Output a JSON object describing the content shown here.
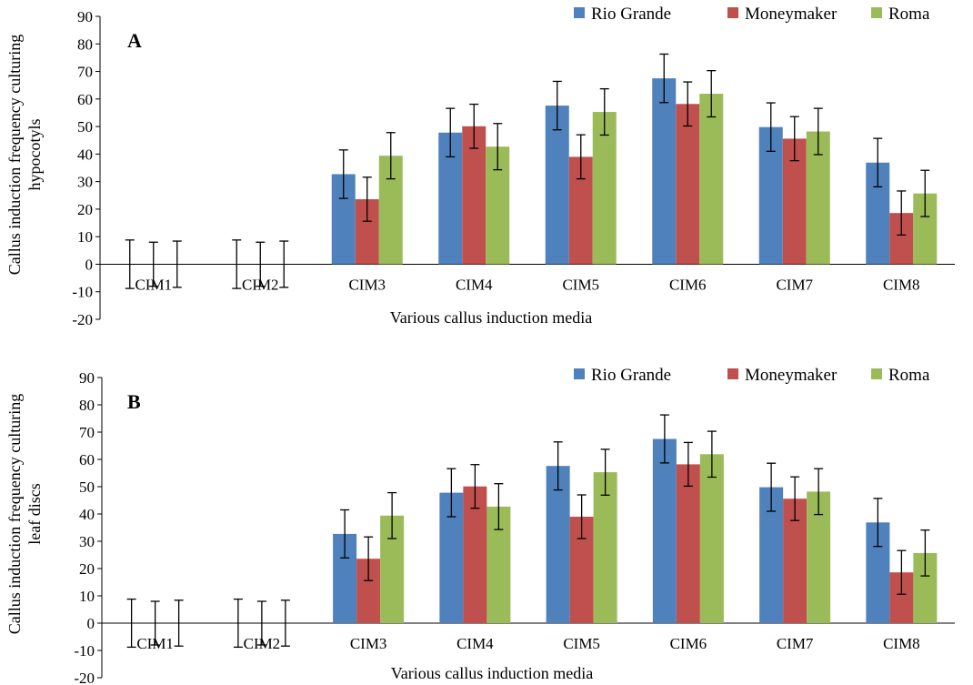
{
  "chart_data": [
    {
      "type": "bar",
      "panel": "A",
      "categories": [
        "CIM1",
        "CIM2",
        "CIM3",
        "CIM4",
        "CIM5",
        "CIM6",
        "CIM7",
        "CIM8"
      ],
      "series": [
        {
          "name": "Rio Grande",
          "color": "#4F81BD",
          "values": [
            0,
            0,
            32.7,
            47.8,
            57.6,
            67.5,
            49.8,
            36.9
          ],
          "errors": [
            8.8,
            8.8,
            8.8,
            8.8,
            8.8,
            8.8,
            8.8,
            8.8
          ]
        },
        {
          "name": "Moneymaker",
          "color": "#C0504D",
          "values": [
            0,
            0,
            23.6,
            50.1,
            39.0,
            58.2,
            45.6,
            18.6
          ],
          "errors": [
            8.0,
            8.0,
            8.0,
            8.0,
            8.0,
            8.0,
            8.0,
            8.0
          ]
        },
        {
          "name": "Roma",
          "color": "#9BBB59",
          "values": [
            0,
            0,
            39.4,
            42.7,
            55.3,
            61.9,
            48.2,
            25.7
          ],
          "errors": [
            8.4,
            8.4,
            8.4,
            8.4,
            8.4,
            8.4,
            8.4,
            8.4
          ]
        }
      ],
      "ylim": [
        -20,
        90
      ],
      "yticks": [
        "-20",
        "-10",
        "0",
        "10",
        "20",
        "30",
        "40",
        "50",
        "60",
        "70",
        "80",
        "90"
      ],
      "ylabel_lines": [
        "Callus induction frequency culturing",
        "hypocotyls"
      ],
      "xlabel": "Various callus induction media",
      "legend_position": "top-right",
      "grid": false
    },
    {
      "type": "bar",
      "panel": "B",
      "categories": [
        "CIM1",
        "CIM2",
        "CIM3",
        "CIM4",
        "CIM5",
        "CIM6",
        "CIM7",
        "CIM8"
      ],
      "series": [
        {
          "name": "Rio Grande",
          "color": "#4F81BD",
          "values": [
            0,
            0,
            32.7,
            47.8,
            57.6,
            67.5,
            49.8,
            36.9
          ],
          "errors": [
            8.8,
            8.8,
            8.8,
            8.8,
            8.8,
            8.8,
            8.8,
            8.8
          ]
        },
        {
          "name": "Moneymaker",
          "color": "#C0504D",
          "values": [
            0,
            0,
            23.6,
            50.1,
            39.0,
            58.2,
            45.6,
            18.6
          ],
          "errors": [
            8.0,
            8.0,
            8.0,
            8.0,
            8.0,
            8.0,
            8.0,
            8.0
          ]
        },
        {
          "name": "Roma",
          "color": "#9BBB59",
          "values": [
            0,
            0,
            39.4,
            42.7,
            55.3,
            61.9,
            48.2,
            25.7
          ],
          "errors": [
            8.4,
            8.4,
            8.4,
            8.4,
            8.4,
            8.4,
            8.4,
            8.4
          ]
        }
      ],
      "ylim": [
        -20,
        90
      ],
      "yticks": [
        "-20",
        "-10",
        "0",
        "10",
        "20",
        "30",
        "40",
        "50",
        "60",
        "70",
        "80",
        "90"
      ],
      "ylabel_lines": [
        "Callus induction frequency culturing",
        "leaf  discs"
      ],
      "xlabel": "Various callus induction media",
      "legend_position": "top-right",
      "grid": false
    }
  ]
}
